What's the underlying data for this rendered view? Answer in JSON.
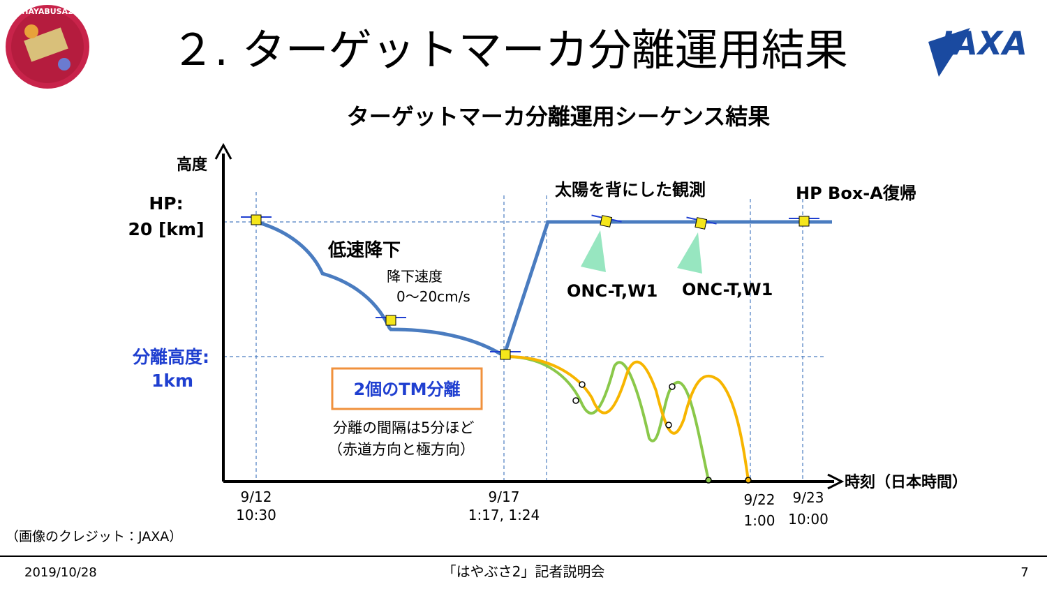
{
  "header": {
    "title": "２. ターゲットマーカ分離運用結果",
    "logo_left": "HAYABUSA2",
    "logo_right": "JAXA"
  },
  "diagram": {
    "title": "ターゲットマーカ分離運用シーケンス結果",
    "y_axis_label": "高度",
    "x_axis_label": "時刻（日本時間）",
    "y_labels": [
      [
        "HP:",
        "20 [km]"
      ],
      [
        "分離高度:",
        "1km"
      ]
    ],
    "x_labels": [
      [
        "9/12",
        "10:30"
      ],
      [
        "9/17",
        "1:17, 1:24"
      ],
      [
        "9/22",
        "1:00"
      ],
      [
        "9/23",
        "10:00"
      ]
    ],
    "annotations": {
      "descent": "低速降下",
      "speed_label": "降下速度",
      "speed": "0〜20cm/s",
      "observation": "太陽を背にした観測",
      "return": "HP Box-A復帰",
      "camera_1": "ONC-T,W1",
      "camera_2": "ONC-T,W1",
      "separation": "2個のTM分離",
      "interval": "分離の間隔は5分ほど",
      "directions": "（赤道方向と極方向）"
    }
  },
  "credit": "（画像のクレジット：JAXA）",
  "footer": {
    "date": "2019/10/28",
    "event": "「はやぶさ2」記者説明会",
    "page": "7"
  }
}
